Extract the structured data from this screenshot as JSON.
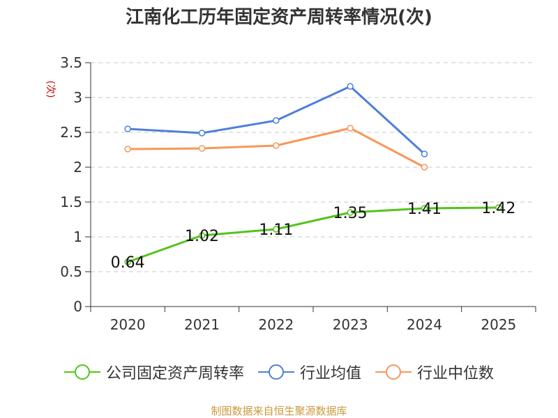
{
  "chart_data": {
    "type": "line",
    "title": "江南化工历年固定资产周转率情况(次)",
    "ylabel": "(次)",
    "xlabel": "",
    "categories": [
      "2020",
      "2021",
      "2022",
      "2023",
      "2024",
      "2025"
    ],
    "ylim": [
      0,
      3.5
    ],
    "yticks": [
      "0",
      "0.5",
      "1",
      "1.5",
      "2",
      "2.5",
      "3",
      "3.5"
    ],
    "grid": true,
    "legend_position": "bottom",
    "series": [
      {
        "name": "公司固定资产周转率",
        "color": "#52c41a",
        "values": [
          0.64,
          1.02,
          1.11,
          1.35,
          1.41,
          1.42
        ],
        "labels": [
          "0.64",
          "1.02",
          "1.11",
          "1.35",
          "1.41",
          "1.42"
        ]
      },
      {
        "name": "行业均值",
        "color": "#4e7fdb",
        "values": [
          2.55,
          2.49,
          2.67,
          3.16,
          2.19,
          null
        ]
      },
      {
        "name": "行业中位数",
        "color": "#f89659",
        "values": [
          2.26,
          2.27,
          2.31,
          2.56,
          2.0,
          null
        ]
      }
    ]
  },
  "source": "制图数据来自恒生聚源数据库"
}
